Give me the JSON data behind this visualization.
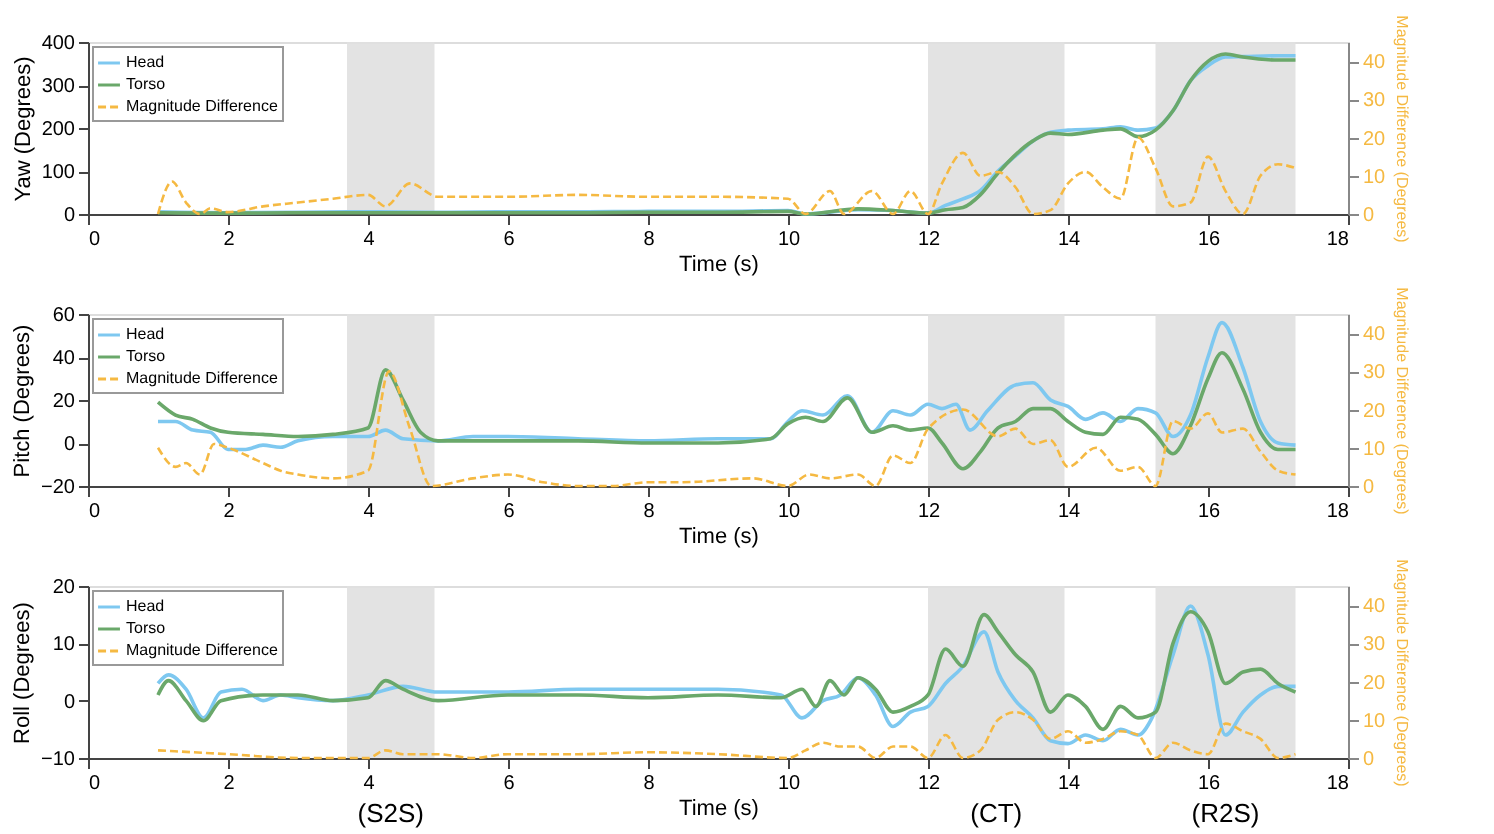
{
  "chart_data": [
    {
      "type": "line",
      "xlabel": "Time (s)",
      "ylabel": "Yaw (Degrees)",
      "y2label": "Magnitude Difference (Degrees)",
      "xlim": [
        0,
        18
      ],
      "xticks": [
        0,
        2,
        4,
        6,
        8,
        10,
        12,
        14,
        16,
        18
      ],
      "ylim": [
        0,
        400
      ],
      "yticks": [
        0,
        100,
        200,
        300,
        400
      ],
      "y2lim": [
        0,
        45
      ],
      "y2ticks": [
        0,
        10,
        20,
        30,
        40
      ],
      "legend": "top left",
      "bands": [
        {
          "axis": "x",
          "from": 3.7,
          "to": 4.95,
          "color": "#e0e0e0"
        },
        {
          "axis": "x",
          "from": 12,
          "to": 13.95,
          "color": "#e0e0e0"
        },
        {
          "axis": "x",
          "from": 15.25,
          "to": 17.25,
          "color": "#e0e0e0"
        }
      ],
      "series": [
        {
          "name": "Head",
          "color": "#7ec8f0",
          "x": [
            1,
            2,
            3,
            4,
            5,
            6,
            7,
            8,
            9,
            10,
            10.25,
            11,
            11.5,
            12,
            12.25,
            12.5,
            12.75,
            13,
            13.25,
            13.5,
            13.75,
            14,
            14.5,
            14.75,
            15,
            15.25,
            15.5,
            15.75,
            16,
            16.25,
            16.5,
            17,
            17.25
          ],
          "values": [
            5,
            3,
            4,
            5,
            4,
            5,
            5,
            6,
            6,
            8,
            0,
            10,
            8,
            2,
            20,
            35,
            55,
            100,
            135,
            170,
            190,
            195,
            198,
            203,
            195,
            200,
            240,
            310,
            345,
            365,
            366,
            368,
            368
          ]
        },
        {
          "name": "Torso",
          "color": "#6aa86a",
          "x": [
            1,
            2,
            3,
            4,
            5,
            6,
            7,
            8,
            9,
            10,
            10.25,
            11,
            11.5,
            12,
            12.25,
            12.5,
            12.75,
            13,
            13.5,
            13.75,
            14,
            14.5,
            14.75,
            15,
            15.25,
            15.5,
            15.75,
            16,
            16.25,
            16.5,
            17,
            17.25
          ],
          "values": [
            3,
            2,
            3,
            3,
            3,
            3,
            3,
            4,
            4,
            6,
            0,
            12,
            8,
            2,
            10,
            15,
            45,
            95,
            170,
            188,
            185,
            195,
            198,
            180,
            195,
            240,
            310,
            355,
            372,
            365,
            358,
            358
          ]
        },
        {
          "name": "Magnitude Difference",
          "color": "#f5b942",
          "axis": "y2",
          "line_style": "dashed",
          "x": [
            1,
            1.2,
            1.4,
            1.6,
            1.75,
            2,
            2.5,
            3,
            3.5,
            4,
            4.25,
            4.6,
            5,
            6,
            7,
            8,
            9,
            10,
            10.25,
            10.6,
            10.8,
            11.2,
            11.5,
            11.75,
            12,
            12.2,
            12.5,
            12.75,
            13,
            13.25,
            13.5,
            13.75,
            14,
            14.25,
            14.5,
            14.75,
            15,
            15.25,
            15.5,
            15.75,
            16,
            16.25,
            16.5,
            16.75,
            17,
            17.25
          ],
          "values": [
            0,
            8.5,
            3,
            0,
            1.5,
            0.5,
            2,
            3,
            4,
            5,
            2,
            8,
            4.5,
            4.5,
            5,
            4.5,
            4.5,
            4,
            0,
            6,
            0,
            6,
            0,
            6,
            0,
            8,
            16,
            10,
            11,
            7,
            0,
            1,
            8,
            11,
            7,
            4,
            20,
            12,
            2,
            3,
            15,
            6,
            0,
            10,
            13,
            12
          ]
        }
      ]
    },
    {
      "type": "line",
      "xlabel": "Time (s)",
      "ylabel": "Pitch (Degrees)",
      "y2label": "Magnitude Difference (Degrees)",
      "xlim": [
        0,
        18
      ],
      "xticks": [
        0,
        2,
        4,
        6,
        8,
        10,
        12,
        14,
        16,
        18
      ],
      "ylim": [
        -20,
        60
      ],
      "yticks": [
        -20,
        0,
        20,
        40,
        60
      ],
      "y2lim": [
        0,
        45
      ],
      "y2ticks": [
        0,
        10,
        20,
        30,
        40
      ],
      "legend": "top left",
      "bands": [
        {
          "axis": "x",
          "from": 3.7,
          "to": 4.95,
          "color": "#e0e0e0"
        },
        {
          "axis": "x",
          "from": 12,
          "to": 13.95,
          "color": "#e0e0e0"
        },
        {
          "axis": "x",
          "from": 15.25,
          "to": 17.25,
          "color": "#e0e0e0"
        }
      ],
      "series": [
        {
          "name": "Head",
          "color": "#7ec8f0",
          "x": [
            1,
            1.25,
            1.5,
            1.75,
            2,
            2.25,
            2.5,
            2.75,
            3,
            3.5,
            4,
            4.25,
            4.5,
            5,
            5.5,
            6,
            7,
            8,
            9,
            9.75,
            10,
            10.2,
            10.5,
            10.85,
            11.2,
            11.5,
            11.75,
            12,
            12.2,
            12.4,
            12.6,
            12.85,
            13.25,
            13.5,
            13.75,
            14,
            14.25,
            14.5,
            14.75,
            15,
            15.25,
            15.5,
            15.75,
            16,
            16.2,
            16.5,
            16.75,
            17,
            17.25
          ],
          "values": [
            10,
            10,
            6,
            5,
            -3,
            -3,
            -1,
            -2,
            1,
            3,
            3,
            6,
            2,
            1,
            3,
            3,
            2,
            1,
            2,
            2,
            10,
            15,
            13,
            22,
            5,
            15,
            13,
            18,
            16,
            18,
            6,
            15,
            27,
            28,
            20,
            17,
            11,
            14,
            10,
            16,
            14,
            3,
            13,
            40,
            56,
            35,
            10,
            0,
            -1
          ]
        },
        {
          "name": "Torso",
          "color": "#6aa86a",
          "x": [
            1,
            1.25,
            1.5,
            1.75,
            2,
            2.5,
            3,
            3.5,
            4,
            4.25,
            4.5,
            4.75,
            5,
            6,
            7,
            8,
            9,
            9.75,
            10,
            10.25,
            10.5,
            10.85,
            11.2,
            11.5,
            11.75,
            12,
            12.2,
            12.5,
            12.75,
            13,
            13.25,
            13.5,
            13.75,
            14,
            14.25,
            14.5,
            14.75,
            15,
            15.25,
            15.5,
            15.75,
            16,
            16.2,
            16.5,
            16.75,
            17,
            17.25
          ],
          "values": [
            19,
            13,
            11,
            7,
            5,
            4,
            3,
            4,
            7,
            34,
            20,
            5,
            1,
            1,
            1,
            0,
            0,
            2,
            9,
            12,
            10,
            21,
            5,
            8,
            6,
            7,
            0,
            -12,
            -4,
            7,
            10,
            16,
            16,
            10,
            5,
            4,
            12,
            11,
            4,
            -5,
            8,
            30,
            42,
            25,
            5,
            -3,
            -3
          ]
        },
        {
          "name": "Magnitude Difference",
          "color": "#f5b942",
          "axis": "y2",
          "line_style": "dashed",
          "x": [
            1,
            1.25,
            1.4,
            1.6,
            1.8,
            2,
            2.5,
            2.75,
            3,
            3.5,
            4,
            4.3,
            4.6,
            4.9,
            5.5,
            6,
            6.5,
            7,
            7.5,
            8,
            8.5,
            9.5,
            10,
            10.3,
            10.6,
            11,
            11.25,
            11.5,
            11.75,
            12,
            12.5,
            13,
            13.25,
            13.5,
            13.75,
            14,
            14.4,
            14.75,
            15,
            15.25,
            15.5,
            15.75,
            16,
            16.2,
            16.5,
            16.75,
            17,
            17.25
          ],
          "values": [
            10,
            5,
            6,
            3,
            11,
            10,
            6,
            4,
            3,
            2,
            4,
            30,
            15,
            0,
            2,
            3,
            1,
            0,
            0,
            1,
            1,
            2,
            0,
            3,
            2,
            3,
            0,
            8,
            6,
            15,
            20,
            13,
            15,
            11,
            12,
            5,
            10,
            4,
            5,
            0,
            17,
            15,
            19,
            14,
            15,
            9,
            4,
            3
          ]
        }
      ]
    },
    {
      "type": "line",
      "xlabel": "Time (s)",
      "ylabel": "Roll (Degrees)",
      "y2label": "Magnitude Difference (Degrees)",
      "xlim": [
        0,
        18
      ],
      "xticks": [
        0,
        2,
        4,
        6,
        8,
        10,
        12,
        14,
        16,
        18
      ],
      "ylim": [
        -10,
        20
      ],
      "yticks": [
        -10,
        0,
        10,
        20
      ],
      "y2lim": [
        0,
        45
      ],
      "y2ticks": [
        0,
        10,
        20,
        30,
        40
      ],
      "legend": "top left",
      "bands": [
        {
          "axis": "x",
          "from": 3.7,
          "to": 4.95,
          "color": "#e0e0e0",
          "label": "(S2S)"
        },
        {
          "axis": "x",
          "from": 12,
          "to": 13.95,
          "color": "#e0e0e0",
          "label": "(CT)"
        },
        {
          "axis": "x",
          "from": 15.25,
          "to": 17.25,
          "color": "#e0e0e0",
          "label": "(R2S)"
        }
      ],
      "series": [
        {
          "name": "Head",
          "color": "#7ec8f0",
          "x": [
            1,
            1.15,
            1.4,
            1.65,
            1.9,
            2.2,
            2.5,
            2.75,
            3,
            3.5,
            4,
            4.5,
            5,
            6,
            7,
            8,
            9,
            9.9,
            10.2,
            10.5,
            10.75,
            11,
            11.25,
            11.5,
            11.75,
            12,
            12.25,
            12.5,
            12.8,
            13,
            13.25,
            13.5,
            13.75,
            14,
            14.25,
            14.5,
            14.75,
            15,
            15.2,
            15.5,
            15.75,
            16,
            16.25,
            16.5,
            16.75,
            17,
            17.25
          ],
          "values": [
            3,
            4.5,
            2,
            -3,
            1.5,
            2,
            0,
            1,
            0.5,
            0,
            1,
            2.5,
            1.5,
            1.5,
            2,
            2,
            2,
            1,
            -3,
            0,
            1,
            4,
            1,
            -4.5,
            -2,
            -1,
            3,
            6,
            12,
            5,
            0,
            -3,
            -7,
            -7.5,
            -6,
            -7,
            -5,
            -6,
            -3,
            8,
            16.5,
            8,
            -6,
            -2,
            1,
            2.5,
            2.5
          ]
        },
        {
          "name": "Torso",
          "color": "#6aa86a",
          "x": [
            1,
            1.15,
            1.4,
            1.65,
            1.9,
            2.5,
            3,
            3.5,
            4,
            4.25,
            4.5,
            5,
            6,
            7,
            8,
            9,
            9.9,
            10.2,
            10.4,
            10.6,
            10.8,
            11,
            11.25,
            11.5,
            11.75,
            12,
            12.25,
            12.5,
            12.8,
            13,
            13.25,
            13.5,
            13.75,
            14,
            14.25,
            14.5,
            14.75,
            15,
            15.25,
            15.5,
            15.75,
            16,
            16.25,
            16.5,
            16.75,
            17,
            17.25
          ],
          "values": [
            1,
            3.5,
            0,
            -3.5,
            0,
            1,
            1,
            0,
            0.5,
            3.5,
            2,
            0,
            1,
            1,
            0.5,
            1,
            0.5,
            2,
            -1,
            3.5,
            1,
            4,
            2,
            -2,
            -1,
            1,
            9,
            6,
            15,
            12,
            8,
            5,
            -2,
            1,
            -1,
            -5,
            -1,
            -3,
            -2,
            10,
            15.5,
            12,
            3,
            5,
            5.5,
            3,
            1.5
          ]
        },
        {
          "name": "Magnitude Difference",
          "color": "#f5b942",
          "axis": "y2",
          "line_style": "dashed",
          "x": [
            1,
            1.5,
            2,
            3,
            4,
            4.25,
            4.5,
            5,
            5.5,
            6,
            7,
            8,
            9,
            10,
            10.25,
            10.5,
            10.75,
            11,
            11.25,
            11.5,
            11.75,
            12,
            12.25,
            12.5,
            12.75,
            13,
            13.25,
            13.5,
            13.75,
            14,
            14.25,
            14.5,
            14.75,
            15,
            15.25,
            15.5,
            15.75,
            16,
            16.25,
            16.5,
            16.75,
            17,
            17.25
          ],
          "values": [
            2,
            1.5,
            1,
            0,
            0,
            2,
            1,
            1,
            0,
            1,
            1,
            1.5,
            1,
            0,
            2,
            4,
            3,
            3,
            0,
            3,
            3,
            0,
            6,
            0,
            2,
            10,
            12,
            10,
            5,
            7,
            4,
            5,
            7,
            6,
            0,
            4,
            2,
            1,
            9,
            7,
            5,
            0,
            1
          ]
        }
      ]
    }
  ]
}
